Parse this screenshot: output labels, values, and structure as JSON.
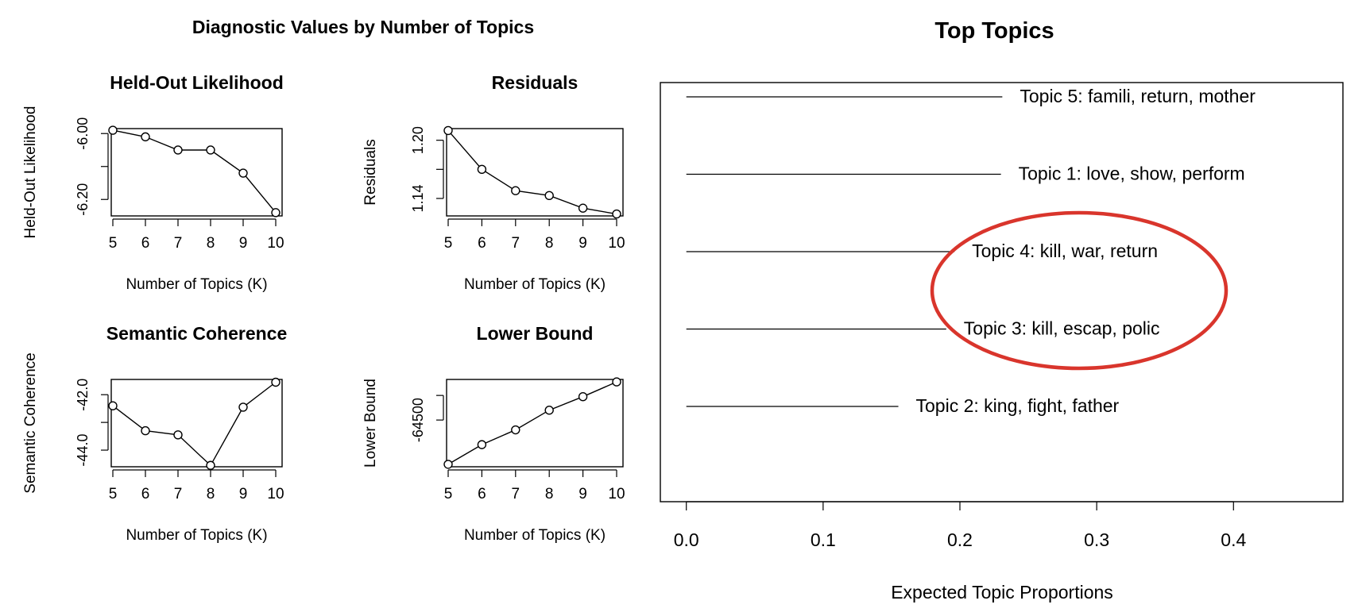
{
  "chart_data": [
    {
      "type": "line",
      "figure_title": "Diagnostic Values by Number of Topics",
      "title": "Held-Out Likelihood",
      "xlabel": "Number of Topics (K)",
      "ylabel": "Held-Out Likelihood",
      "x": [
        5,
        6,
        7,
        8,
        9,
        10
      ],
      "values": [
        -5.99,
        -6.01,
        -6.05,
        -6.05,
        -6.12,
        -6.24
      ],
      "x_ticks": [
        "5",
        "6",
        "7",
        "8",
        "9",
        "10"
      ],
      "y_ticks": [
        {
          "v": -6.0,
          "label": "-6.00"
        },
        {
          "v": -6.1,
          "label": ""
        },
        {
          "v": -6.2,
          "label": "-6.20"
        }
      ],
      "ylim": [
        -6.25,
        -5.985
      ],
      "markers": "open-circle",
      "grid": false
    },
    {
      "type": "line",
      "title": "Residuals",
      "xlabel": "Number of Topics (K)",
      "ylabel": "Residuals",
      "x": [
        5,
        6,
        7,
        8,
        9,
        10
      ],
      "values": [
        1.21,
        1.17,
        1.148,
        1.143,
        1.13,
        1.124
      ],
      "x_ticks": [
        "5",
        "6",
        "7",
        "8",
        "9",
        "10"
      ],
      "y_ticks": [
        {
          "v": 1.2,
          "label": "1.20"
        },
        {
          "v": 1.17,
          "label": ""
        },
        {
          "v": 1.14,
          "label": "1.14"
        }
      ],
      "ylim": [
        1.122,
        1.212
      ],
      "markers": "open-circle",
      "grid": false
    },
    {
      "type": "line",
      "title": "Semantic Coherence",
      "xlabel": "Number of Topics (K)",
      "ylabel": "Semantic Coherence",
      "x": [
        5,
        6,
        7,
        8,
        9,
        10
      ],
      "values": [
        -42.4,
        -43.3,
        -43.45,
        -44.55,
        -42.45,
        -41.55
      ],
      "x_ticks": [
        "5",
        "6",
        "7",
        "8",
        "9",
        "10"
      ],
      "y_ticks": [
        {
          "v": -42.0,
          "label": "-42.0"
        },
        {
          "v": -43.0,
          "label": ""
        },
        {
          "v": -44.0,
          "label": "-44.0"
        }
      ],
      "ylim": [
        -44.6,
        -41.45
      ],
      "markers": "open-circle",
      "grid": false
    },
    {
      "type": "line",
      "title": "Lower Bound",
      "xlabel": "Number of Topics (K)",
      "ylabel": "Lower Bound",
      "x": [
        5,
        6,
        7,
        8,
        9,
        10
      ],
      "values": [
        -64680,
        -64600,
        -64540,
        -64460,
        -64405,
        -64345
      ],
      "x_ticks": [
        "5",
        "6",
        "7",
        "8",
        "9",
        "10"
      ],
      "y_ticks": [
        {
          "v": -64500,
          "label": "-64500"
        },
        {
          "v": -64400,
          "label": ""
        }
      ],
      "ylim": [
        -64690,
        -64335
      ],
      "markers": "open-circle",
      "grid": false
    },
    {
      "type": "bar",
      "orientation": "horizontal",
      "style": "segment",
      "title": "Top Topics",
      "xlabel": "Expected Topic Proportions",
      "ylabel": "",
      "categories": [
        "Topic 5: famili, return, mother",
        "Topic 1: love, show, perform",
        "Topic 4: kill, war, return",
        "Topic 3: kill, escap, polic",
        "Topic 2: king, fight, father"
      ],
      "values": [
        0.231,
        0.23,
        0.196,
        0.19,
        0.155
      ],
      "x_ticks": [
        "0.0",
        "0.1",
        "0.2",
        "0.3",
        "0.4"
      ],
      "xlim": [
        -0.019,
        0.48
      ],
      "annotation": {
        "shape": "ellipse",
        "color": "#d9352c",
        "highlights": [
          "Topic 4: kill, war, return",
          "Topic 3: kill, escap, polic"
        ]
      }
    }
  ]
}
